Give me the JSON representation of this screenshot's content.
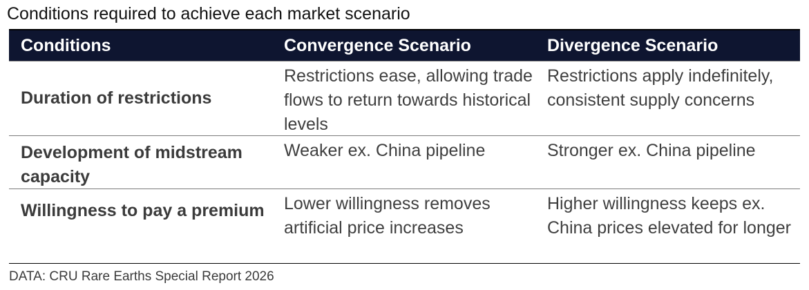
{
  "title": "Conditions required to achieve each market scenario",
  "table": {
    "headers": [
      "Conditions",
      "Convergence Scenario",
      "Divergence Scenario"
    ],
    "rows": [
      {
        "condition": "Duration of restrictions",
        "convergence": "Restrictions ease, allowing trade flows to return towards historical levels",
        "divergence": "Restrictions apply indefinitely, consistent supply concerns"
      },
      {
        "condition": "Development of midstream capacity",
        "convergence": "Weaker ex. China pipeline",
        "divergence": "Stronger ex. China pipeline"
      },
      {
        "condition": "Willingness to pay a premium",
        "convergence": "Lower willingness removes artificial price increases",
        "divergence": "Higher willingness keeps ex. China prices elevated for longer"
      }
    ]
  },
  "source": "DATA: CRU Rare Earths Special Report 2026",
  "colors": {
    "header_bg": "#0e1530",
    "header_text": "#ffffff",
    "body_text": "#3f3f3f"
  }
}
